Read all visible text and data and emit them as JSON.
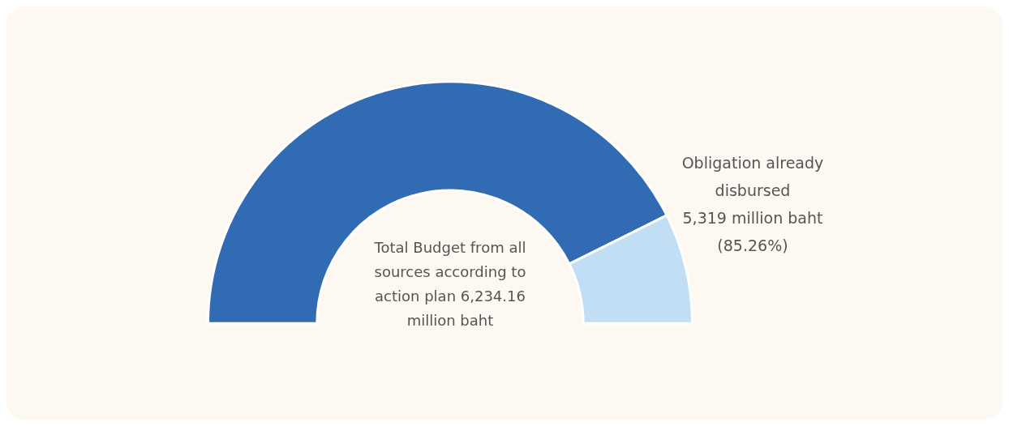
{
  "chart_data": {
    "type": "donut",
    "categories": [
      "Obligation already disbursed",
      null
    ],
    "values": [
      85.26,
      14.74
    ],
    "colors": [
      "#306bb3",
      "#c2def4"
    ],
    "value_labels": [
      "5,319 million baht (85.26%)",
      null
    ],
    "annotations": [
      "Total Budget from all sources according to action plan 6,234.16 million baht"
    ]
  }
}
